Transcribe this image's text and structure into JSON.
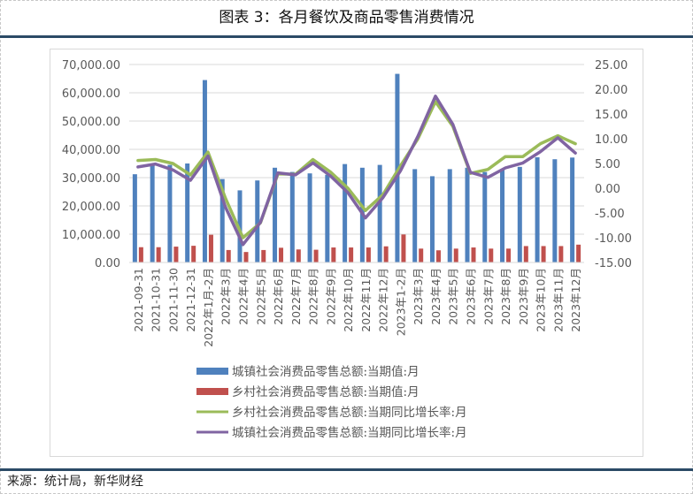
{
  "header": {
    "title": "图表 3：各月餐饮及商品零售消费情况"
  },
  "footer": {
    "source": "来源：统计局，新华财经"
  },
  "chart_data": {
    "type": "bar",
    "title": "图表 3：各月餐饮及商品零售消费情况",
    "xlabel": "",
    "ylabel": "",
    "categories": [
      "2021-09-31",
      "2021-10-31",
      "2021-11-30",
      "2021-12-31",
      "2022年1月-2月",
      "2022年3月",
      "2022年4月",
      "2022年5月",
      "2022年6月",
      "2022年7月",
      "2022年8月",
      "2022年9月",
      "2022年10月",
      "2022年11月",
      "2022年12月",
      "2023年1-2月",
      "2023年3月",
      "2023年4月",
      "2023年5月",
      "2023年6月",
      "2023年7月",
      "2023年8月",
      "2023年9月",
      "2023年10月",
      "2023年11月",
      "2023年12月"
    ],
    "ylim": [
      0,
      70000
    ],
    "y2lim": [
      -15,
      25
    ],
    "yticks": [
      "70,000.00",
      "60,000.00",
      "50,000.00",
      "40,000.00",
      "30,000.00",
      "20,000.00",
      "10,000.00",
      "0.00"
    ],
    "y2ticks": [
      "25.00",
      "20.00",
      "15.00",
      "10.00",
      "5.00",
      "0.00",
      "-5.00",
      "-10.00",
      "-15.00"
    ],
    "grid": true,
    "legend_position": "bottom",
    "series": [
      {
        "name": "城镇社会消费品零售总额:当期值:月",
        "type": "bar",
        "axis": "left",
        "color": "#4f81bd",
        "values": [
          31200,
          34500,
          34500,
          35000,
          64500,
          29500,
          25500,
          29000,
          33500,
          32000,
          31500,
          31000,
          34800,
          33500,
          34500,
          66700,
          33000,
          30500,
          33000,
          33500,
          32000,
          33000,
          33800,
          37200,
          36500,
          37100
        ]
      },
      {
        "name": "乡村社会消费品零售总额:当期值:月",
        "type": "bar",
        "axis": "left",
        "color": "#c0504d",
        "values": [
          5400,
          5400,
          5600,
          5900,
          9800,
          4400,
          3700,
          4400,
          5200,
          4600,
          4500,
          5300,
          5300,
          5300,
          5700,
          9900,
          4900,
          4300,
          4900,
          5300,
          4900,
          4900,
          5800,
          5800,
          5800,
          6300
        ]
      },
      {
        "name": "乡村社会消费品零售总额:当期同比增长率:月",
        "type": "line",
        "axis": "right",
        "color": "#9bbb59",
        "values": [
          5.6,
          5.8,
          5.0,
          2.7,
          7.3,
          -2.0,
          -10.0,
          -7.0,
          2.9,
          2.8,
          5.8,
          3.3,
          0.0,
          -4.5,
          -1.3,
          4.5,
          10.0,
          17.5,
          12.5,
          3.0,
          3.8,
          6.4,
          6.4,
          9.0,
          10.6,
          9.0
        ]
      },
      {
        "name": "城镇社会消费品零售总额:当期同比增长率:月",
        "type": "line",
        "axis": "right",
        "color": "#8064a2",
        "values": [
          4.3,
          4.9,
          3.7,
          1.6,
          6.5,
          -3.8,
          -11.4,
          -6.9,
          3.1,
          2.7,
          5.1,
          2.5,
          -0.9,
          -6.0,
          -1.9,
          3.5,
          10.5,
          18.6,
          12.9,
          3.2,
          2.2,
          4.1,
          5.1,
          7.4,
          10.2,
          7.1
        ]
      }
    ]
  }
}
